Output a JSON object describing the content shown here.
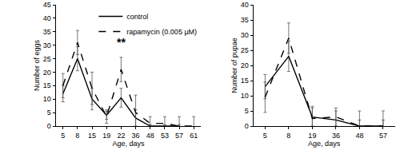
{
  "chart_data": [
    {
      "type": "line",
      "x_label": "Age, days",
      "y_label": "Number of eggs",
      "categories": [
        "5",
        "8",
        "15",
        "19",
        "22",
        "36",
        "48",
        "53",
        "57",
        "61"
      ],
      "ylim": [
        0,
        45
      ],
      "yticks": [
        0,
        5,
        10,
        15,
        20,
        25,
        30,
        35,
        40,
        45
      ],
      "legend": "upper right",
      "annotations": [
        {
          "text": "**",
          "x": "22",
          "y": 28
        }
      ],
      "series": [
        {
          "name": "control",
          "color": "#000000",
          "line_style": "solid",
          "values": [
            12,
            25,
            10,
            4,
            10.5,
            3,
            0,
            0,
            0,
            null
          ],
          "errors": [
            3,
            4.5,
            4,
            1.5,
            3.5,
            3,
            0.5,
            0.5,
            0.5,
            null
          ]
        },
        {
          "name": "rapamycin (0.005 µM)",
          "color": "#000000",
          "line_style": "dash",
          "values": [
            15,
            31,
            14,
            3.5,
            21,
            5,
            1,
            1,
            0,
            0
          ],
          "errors": [
            4.5,
            4.5,
            6,
            2.5,
            4.5,
            6.5,
            2.5,
            2.5,
            3.5,
            3.5
          ]
        }
      ]
    },
    {
      "type": "line",
      "x_label": "Age, days",
      "y_label": "Number of pupae",
      "categories": [
        "5",
        "8",
        "19",
        "36",
        "48",
        "57"
      ],
      "ylim": [
        0,
        40
      ],
      "yticks": [
        0,
        5,
        10,
        15,
        20,
        25,
        30,
        35,
        40
      ],
      "series": [
        {
          "color": "#000000",
          "line_style": "solid",
          "values": [
            13,
            23,
            3,
            2,
            0,
            0
          ],
          "errors": [
            4,
            5,
            3,
            3,
            2,
            2
          ]
        },
        {
          "color": "#000000",
          "line_style": "dash",
          "values": [
            9.5,
            29,
            2.5,
            3,
            0,
            0
          ],
          "errors": [
            5,
            5,
            4,
            3,
            5,
            5
          ]
        }
      ]
    }
  ]
}
